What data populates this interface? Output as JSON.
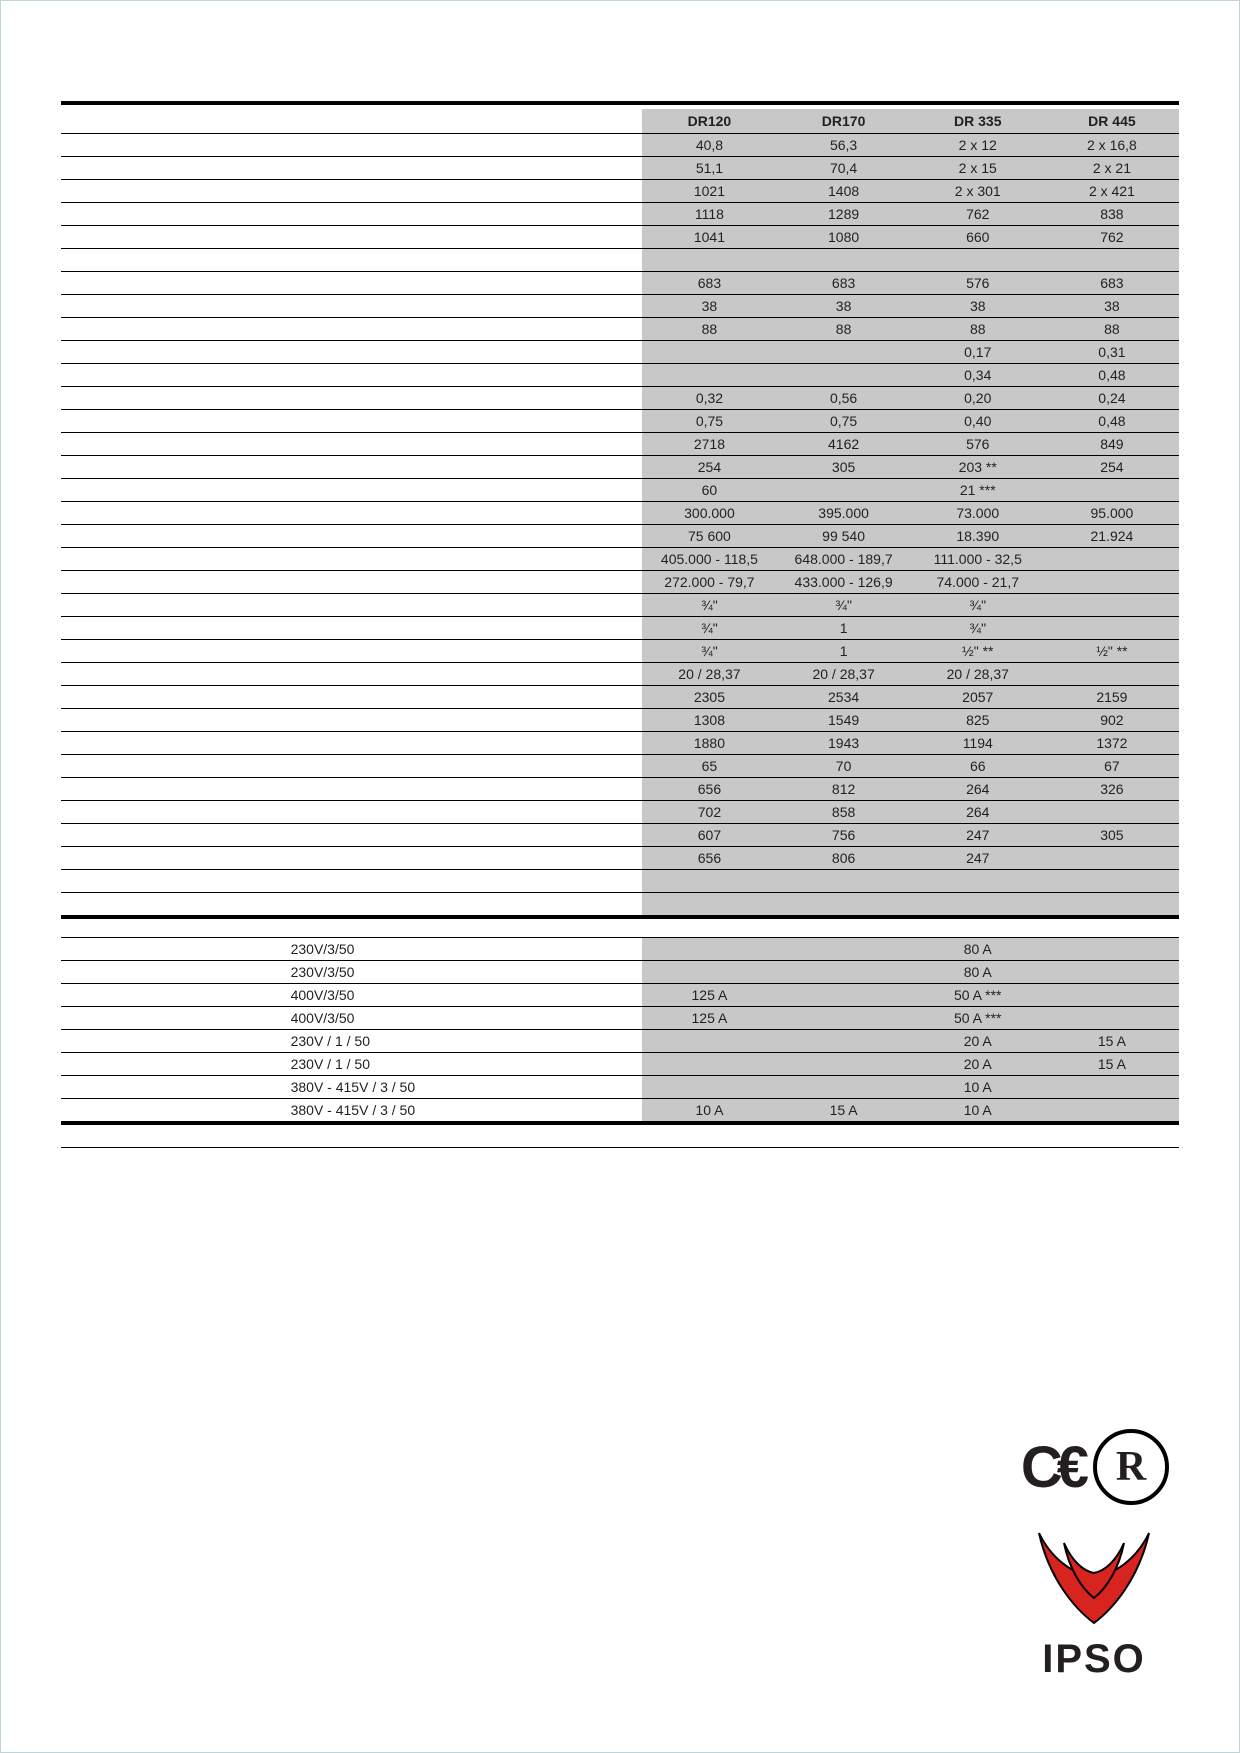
{
  "headers": [
    "DR120",
    "DR170",
    "DR 335",
    "DR 445"
  ],
  "rows": [
    {
      "cells": [
        "40,8",
        "56,3",
        "2 x 12",
        "2 x 16,8"
      ]
    },
    {
      "cells": [
        "51,1",
        "70,4",
        "2 x 15",
        "2 x 21"
      ]
    },
    {
      "cells": [
        "1021",
        "1408",
        "2 x 301",
        "2 x 421"
      ]
    },
    {
      "cells": [
        "1118",
        "1289",
        "762",
        "838"
      ]
    },
    {
      "cells": [
        "1041",
        "1080",
        "660",
        "762"
      ]
    },
    {
      "cells": [
        "",
        "",
        "",
        ""
      ]
    },
    {
      "cells": [
        "683",
        "683",
        "576",
        "683"
      ]
    },
    {
      "cells": [
        "38",
        "38",
        "38",
        "38"
      ]
    },
    {
      "cells": [
        "88",
        "88",
        "88",
        "88"
      ]
    },
    {
      "cells": [
        "",
        "",
        "0,17",
        "0,31"
      ]
    },
    {
      "cells": [
        "",
        "",
        "0,34",
        "0,48"
      ]
    },
    {
      "cells": [
        "0,32",
        "0,56",
        "0,20",
        "0,24"
      ]
    },
    {
      "cells": [
        "0,75",
        "0,75",
        "0,40",
        "0,48"
      ]
    },
    {
      "cells": [
        "2718",
        "4162",
        "576",
        "849"
      ]
    },
    {
      "cells": [
        "254",
        "305",
        "203 **",
        "254"
      ]
    },
    {
      "cells": [
        "60",
        "",
        "21 ***",
        ""
      ]
    },
    {
      "cells": [
        "300.000",
        "395.000",
        "73.000",
        "95.000"
      ]
    },
    {
      "cells": [
        "75 600",
        "99 540",
        "18.390",
        "21.924"
      ]
    },
    {
      "cells": [
        "405.000 - 118,5",
        "648.000 - 189,7",
        "111.000 - 32,5",
        ""
      ]
    },
    {
      "cells": [
        "272.000 - 79,7",
        "433.000 - 126,9",
        "74.000 - 21,7",
        ""
      ]
    },
    {
      "cells": [
        "¾\"",
        "¾\"",
        "¾\"",
        ""
      ]
    },
    {
      "cells": [
        "¾\"",
        "1",
        "¾\"",
        ""
      ]
    },
    {
      "cells": [
        "¾\"",
        "1",
        "½\" **",
        "½\" **"
      ]
    },
    {
      "cells": [
        "20 / 28,37",
        "20 / 28,37",
        "20 / 28,37",
        ""
      ]
    },
    {
      "cells": [
        "2305",
        "2534",
        "2057",
        "2159"
      ]
    },
    {
      "cells": [
        "1308",
        "1549",
        "825",
        "902"
      ]
    },
    {
      "cells": [
        "1880",
        "1943",
        "1194",
        "1372"
      ]
    },
    {
      "cells": [
        "65",
        "70",
        "66",
        "67"
      ]
    },
    {
      "cells": [
        "656",
        "812",
        "264",
        "326"
      ]
    },
    {
      "cells": [
        "702",
        "858",
        "264",
        ""
      ]
    },
    {
      "cells": [
        "607",
        "756",
        "247",
        "305"
      ]
    },
    {
      "cells": [
        "656",
        "806",
        "247",
        ""
      ]
    },
    {
      "cells": [
        "",
        "",
        "",
        ""
      ]
    },
    {
      "cells": [
        "",
        "",
        "",
        ""
      ]
    }
  ],
  "elec": [
    {
      "volt": "230V/3/50",
      "c": [
        "",
        "",
        "80 A",
        ""
      ]
    },
    {
      "volt": "230V/3/50",
      "c": [
        "",
        "",
        "80 A",
        ""
      ]
    },
    {
      "volt": "400V/3/50",
      "c": [
        "125 A",
        "",
        "50 A ***",
        ""
      ]
    },
    {
      "volt": "400V/3/50",
      "c": [
        "125 A",
        "",
        "50 A ***",
        ""
      ]
    },
    {
      "volt": "230V / 1 / 50",
      "c": [
        "",
        "",
        "20 A",
        "15 A"
      ]
    },
    {
      "volt": "230V / 1 / 50",
      "c": [
        "",
        "",
        "20 A",
        "15 A"
      ]
    },
    {
      "volt": "380V - 415V / 3 / 50",
      "c": [
        "",
        "",
        "10 A",
        ""
      ]
    },
    {
      "volt": "380V - 415V / 3 / 50",
      "c": [
        "10 A",
        "15 A",
        "10 A",
        ""
      ]
    }
  ],
  "brand": "IPSO",
  "colors": {
    "shade": "#c8c8c8",
    "logo_red": "#d8241f"
  }
}
